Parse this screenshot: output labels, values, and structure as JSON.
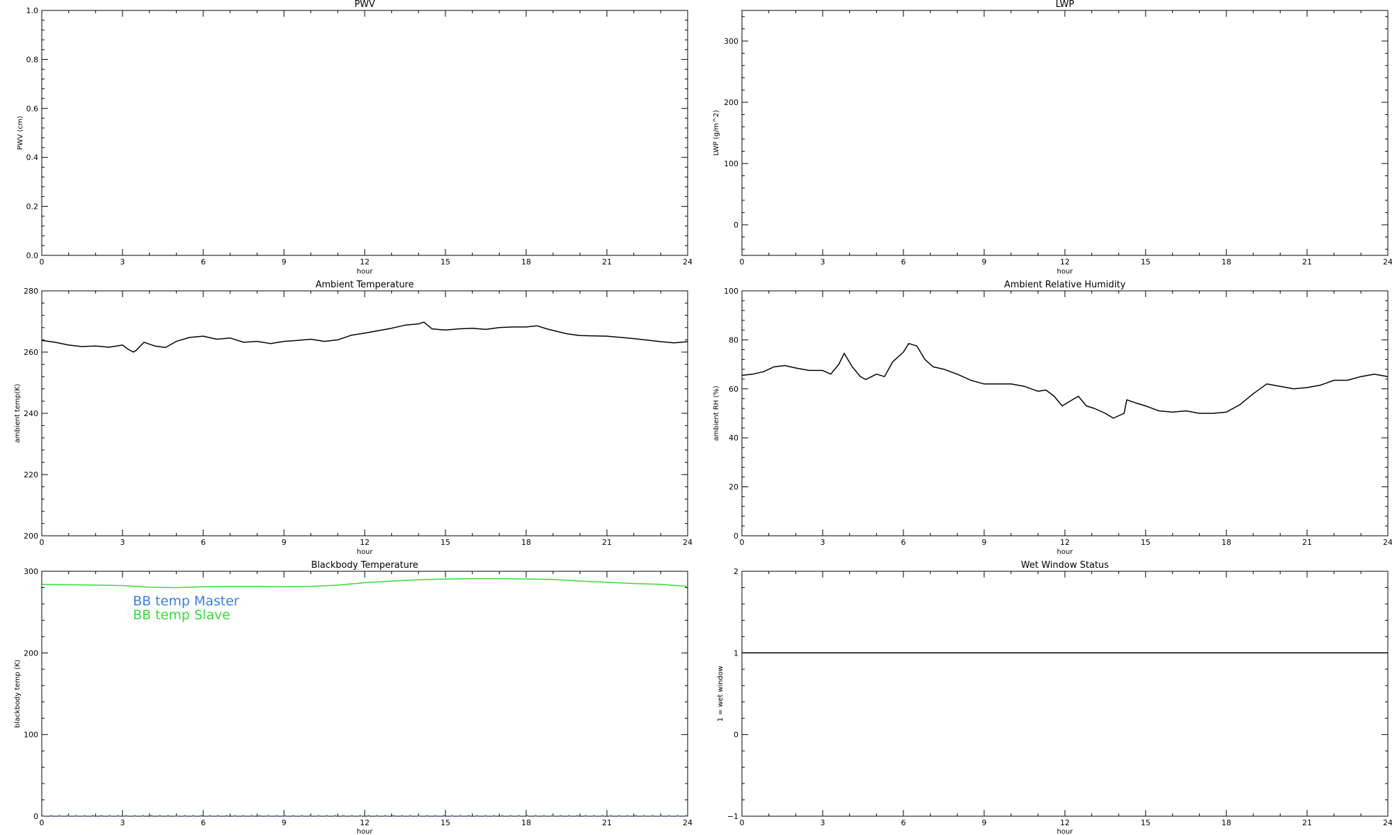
{
  "chart_data": [
    {
      "id": "pwv",
      "type": "line",
      "title": "PWV",
      "xlabel": "hour",
      "ylabel": "PWV (cm)",
      "xlim": [
        0,
        24
      ],
      "ylim": [
        0.0,
        1.0
      ],
      "xticks": [
        "0",
        "3",
        "6",
        "9",
        "12",
        "15",
        "18",
        "21",
        "24"
      ],
      "yticks": [
        {
          "value": 0.0,
          "label": "0.0"
        },
        {
          "value": 0.2,
          "label": "0.2"
        },
        {
          "value": 0.4,
          "label": "0.4"
        },
        {
          "value": 0.6,
          "label": "0.6"
        },
        {
          "value": 0.8,
          "label": "0.8"
        },
        {
          "value": 1.0,
          "label": "1.0"
        }
      ],
      "series": []
    },
    {
      "id": "lwp",
      "type": "line",
      "title": "LWP",
      "xlabel": "hour",
      "ylabel": "LWP (g/m^2)",
      "xlim": [
        0,
        24
      ],
      "ylim": [
        -50,
        350
      ],
      "xticks": [
        "0",
        "3",
        "6",
        "9",
        "12",
        "15",
        "18",
        "21",
        "24"
      ],
      "yticks": [
        {
          "value": 0,
          "label": "0"
        },
        {
          "value": 100,
          "label": "100"
        },
        {
          "value": 200,
          "label": "200"
        },
        {
          "value": 300,
          "label": "300"
        }
      ],
      "series": []
    },
    {
      "id": "ambient-temp",
      "type": "line",
      "title": "Ambient Temperature",
      "xlabel": "hour",
      "ylabel": "ambient temp(K)",
      "xlim": [
        0,
        24
      ],
      "ylim": [
        200,
        280
      ],
      "xticks": [
        "0",
        "3",
        "6",
        "9",
        "12",
        "15",
        "18",
        "21",
        "24"
      ],
      "yticks": [
        {
          "value": 200,
          "label": "200"
        },
        {
          "value": 220,
          "label": "220"
        },
        {
          "value": 240,
          "label": "240"
        },
        {
          "value": 260,
          "label": "260"
        },
        {
          "value": 280,
          "label": "280"
        }
      ],
      "series": [
        {
          "color": "#000000",
          "x": [
            0,
            0.5,
            1,
            1.5,
            2,
            2.5,
            3,
            3.2,
            3.4,
            3.5,
            3.8,
            4.2,
            4.6,
            5,
            5.5,
            6,
            6.5,
            7,
            7.5,
            8,
            8.5,
            9,
            9.5,
            10,
            10.5,
            11,
            11.5,
            12,
            12.5,
            13,
            13.5,
            14,
            14.2,
            14.5,
            15,
            15.5,
            16,
            16.5,
            17,
            17.5,
            18,
            18.4,
            18.8,
            19.5,
            20,
            21,
            22,
            23,
            23.5,
            24
          ],
          "y": [
            263.8,
            263.2,
            262.3,
            261.8,
            262.0,
            261.6,
            262.3,
            261.0,
            260.0,
            260.5,
            263.2,
            262.0,
            261.5,
            263.5,
            264.8,
            265.2,
            264.2,
            264.6,
            263.2,
            263.5,
            262.8,
            263.5,
            263.8,
            264.2,
            263.5,
            264.0,
            265.5,
            266.2,
            267.0,
            267.8,
            268.8,
            269.2,
            269.8,
            267.6,
            267.2,
            267.6,
            267.8,
            267.4,
            268.0,
            268.2,
            268.2,
            268.6,
            267.5,
            266.0,
            265.4,
            265.2,
            264.4,
            263.4,
            263.0,
            263.4
          ]
        }
      ]
    },
    {
      "id": "ambient-rh",
      "type": "line",
      "title": "Ambient Relative Humidity",
      "xlabel": "hour",
      "ylabel": "ambient RH (%)",
      "xlim": [
        0,
        24
      ],
      "ylim": [
        0,
        100
      ],
      "xticks": [
        "0",
        "3",
        "6",
        "9",
        "12",
        "15",
        "18",
        "21",
        "24"
      ],
      "yticks": [
        {
          "value": 0,
          "label": "0"
        },
        {
          "value": 20,
          "label": "20"
        },
        {
          "value": 40,
          "label": "40"
        },
        {
          "value": 60,
          "label": "60"
        },
        {
          "value": 80,
          "label": "80"
        },
        {
          "value": 100,
          "label": "100"
        }
      ],
      "series": [
        {
          "color": "#000000",
          "x": [
            0,
            0.4,
            0.8,
            1.2,
            1.6,
            2,
            2.5,
            3,
            3.3,
            3.6,
            3.8,
            4.1,
            4.4,
            4.6,
            5,
            5.3,
            5.6,
            6,
            6.2,
            6.5,
            6.8,
            7.1,
            7.5,
            8,
            8.5,
            9,
            9.5,
            10,
            10.5,
            11,
            11.3,
            11.6,
            11.9,
            12.2,
            12.5,
            12.8,
            13.1,
            13.5,
            13.8,
            14.2,
            14.3,
            14.7,
            15,
            15.5,
            16,
            16.5,
            17,
            17.5,
            18,
            18.5,
            19,
            19.5,
            20,
            20.5,
            21,
            21.5,
            22,
            22.5,
            23,
            23.5,
            24
          ],
          "y": [
            65.5,
            66.0,
            67.0,
            69.0,
            69.5,
            68.5,
            67.5,
            67.5,
            66.0,
            70.0,
            74.5,
            69.0,
            65.0,
            63.8,
            66.0,
            65.0,
            71.0,
            75.0,
            78.5,
            77.5,
            72.0,
            69.0,
            68.0,
            66.0,
            63.5,
            62.0,
            62.0,
            62.0,
            61.0,
            59.0,
            59.5,
            57.0,
            53.0,
            55.0,
            57.0,
            53.0,
            52.0,
            50.0,
            48.0,
            50.0,
            55.5,
            54.0,
            53.0,
            51.0,
            50.5,
            51.0,
            50.0,
            50.0,
            50.5,
            53.5,
            58.0,
            62.0,
            61.0,
            60.0,
            60.5,
            61.5,
            63.5,
            63.5,
            65.0,
            66.0,
            65.0
          ]
        }
      ]
    },
    {
      "id": "blackbody-temp",
      "type": "line",
      "title": "Blackbody Temperature",
      "xlabel": "hour",
      "ylabel": "blackbody temp (K)",
      "xlim": [
        0,
        24
      ],
      "ylim": [
        0,
        300
      ],
      "xticks": [
        "0",
        "3",
        "6",
        "9",
        "12",
        "15",
        "18",
        "21",
        "24"
      ],
      "yticks": [
        {
          "value": 0,
          "label": "0"
        },
        {
          "value": 100,
          "label": "100"
        },
        {
          "value": 200,
          "label": "200"
        },
        {
          "value": 300,
          "label": "300"
        }
      ],
      "legend": "upper-left",
      "series": [
        {
          "name": "BB temp Master",
          "color": "#3a7fe0",
          "dashed": true,
          "x": [
            0,
            24
          ],
          "y": [
            0.5,
            0.5
          ]
        },
        {
          "name": "BB temp Slave",
          "color": "#33dd33",
          "x": [
            0,
            1,
            2,
            3,
            4,
            5,
            6,
            7,
            8,
            9,
            10,
            11,
            12,
            13,
            14,
            15,
            16,
            17,
            18,
            19,
            20,
            21,
            22,
            23,
            24
          ],
          "y": [
            284.0,
            283.5,
            283.0,
            282.5,
            280.5,
            280.0,
            281.0,
            281.5,
            281.5,
            281.0,
            281.5,
            283.0,
            286.0,
            288.0,
            289.5,
            290.5,
            291.0,
            291.0,
            290.5,
            290.0,
            288.0,
            286.5,
            285.0,
            284.0,
            281.5
          ]
        }
      ]
    },
    {
      "id": "wet-window",
      "type": "line",
      "title": "Wet Window Status",
      "xlabel": "hour",
      "ylabel": "1 = wet window",
      "xlim": [
        0,
        24
      ],
      "ylim": [
        -1,
        2
      ],
      "xticks": [
        "0",
        "3",
        "6",
        "9",
        "12",
        "15",
        "18",
        "21",
        "24"
      ],
      "yticks": [
        {
          "value": -1,
          "label": "−1"
        },
        {
          "value": 0,
          "label": "0"
        },
        {
          "value": 1,
          "label": "1"
        },
        {
          "value": 2,
          "label": "2"
        }
      ],
      "series": [
        {
          "color": "#000000",
          "x": [
            0,
            24
          ],
          "y": [
            1,
            1
          ]
        }
      ]
    }
  ]
}
